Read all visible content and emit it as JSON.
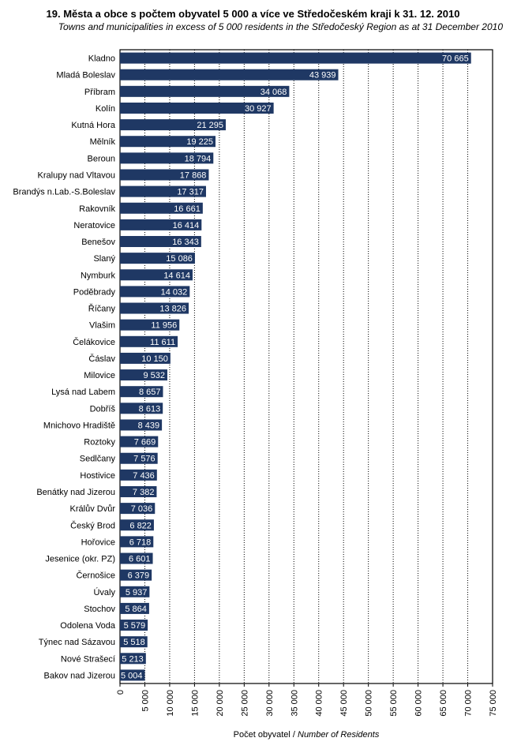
{
  "chart_data": {
    "type": "bar",
    "orientation": "horizontal",
    "title": "19. Města a obce s počtem obyvatel 5 000 a více ve Středočeském  kraji k 31. 12. 2010",
    "subtitle": "Towns and municipalities in excess of 5 000 residents in the Středočeský Region as at 31 December 2010",
    "xlabel_cz": "Počet obyvatel / ",
    "xlabel_en": "Number of Residents",
    "xlim": [
      0,
      75000
    ],
    "grid": true,
    "bar_color": "#1f3864",
    "ticks": [
      "0",
      "5 000",
      "10 000",
      "15 000",
      "20 000",
      "25 000",
      "30 000",
      "35 000",
      "40 000",
      "45 000",
      "50 000",
      "55 000",
      "60 000",
      "65 000",
      "70 000",
      "75 000"
    ],
    "categories": [
      "Kladno",
      "Mladá Boleslav",
      "Příbram",
      "Kolín",
      "Kutná Hora",
      "Mělník",
      "Beroun",
      "Kralupy nad Vltavou",
      "Brandýs n.Lab.-S.Boleslav",
      "Rakovník",
      "Neratovice",
      "Benešov",
      "Slaný",
      "Nymburk",
      "Poděbrady",
      "Říčany",
      "Vlašim",
      "Čelákovice",
      "Čáslav",
      "Milovice",
      "Lysá nad Labem",
      "Dobříš",
      "Mnichovo Hradiště",
      "Roztoky",
      "Sedlčany",
      "Hostivice",
      "Benátky nad Jizerou",
      "Králův Dvůr",
      "Český Brod",
      "Hořovice",
      "Jesenice (okr. PZ)",
      "Černošice",
      "Úvaly",
      "Stochov",
      "Odolena Voda",
      "Týnec nad Sázavou",
      "Nové Strašecí",
      "Bakov nad Jizerou"
    ],
    "values": [
      70665,
      43939,
      34068,
      30927,
      21295,
      19225,
      18794,
      17868,
      17317,
      16661,
      16414,
      16343,
      15086,
      14614,
      14032,
      13826,
      11956,
      11611,
      10150,
      9532,
      8657,
      8613,
      8439,
      7669,
      7576,
      7436,
      7382,
      7036,
      6822,
      6718,
      6601,
      6379,
      5937,
      5864,
      5579,
      5518,
      5213,
      5004
    ],
    "value_labels": [
      "70 665",
      "43 939",
      "34 068",
      "30 927",
      "21 295",
      "19 225",
      "18 794",
      "17 868",
      "17 317",
      "16 661",
      "16 414",
      "16 343",
      "15 086",
      "14 614",
      "14 032",
      "13 826",
      "11 956",
      "11 611",
      "10 150",
      "9 532",
      "8 657",
      "8 613",
      "8 439",
      "7 669",
      "7 576",
      "7 436",
      "7 382",
      "7 036",
      "6 822",
      "6 718",
      "6 601",
      "6 379",
      "5 937",
      "5 864",
      "5 579",
      "5 518",
      "5 213",
      "5 004"
    ]
  }
}
